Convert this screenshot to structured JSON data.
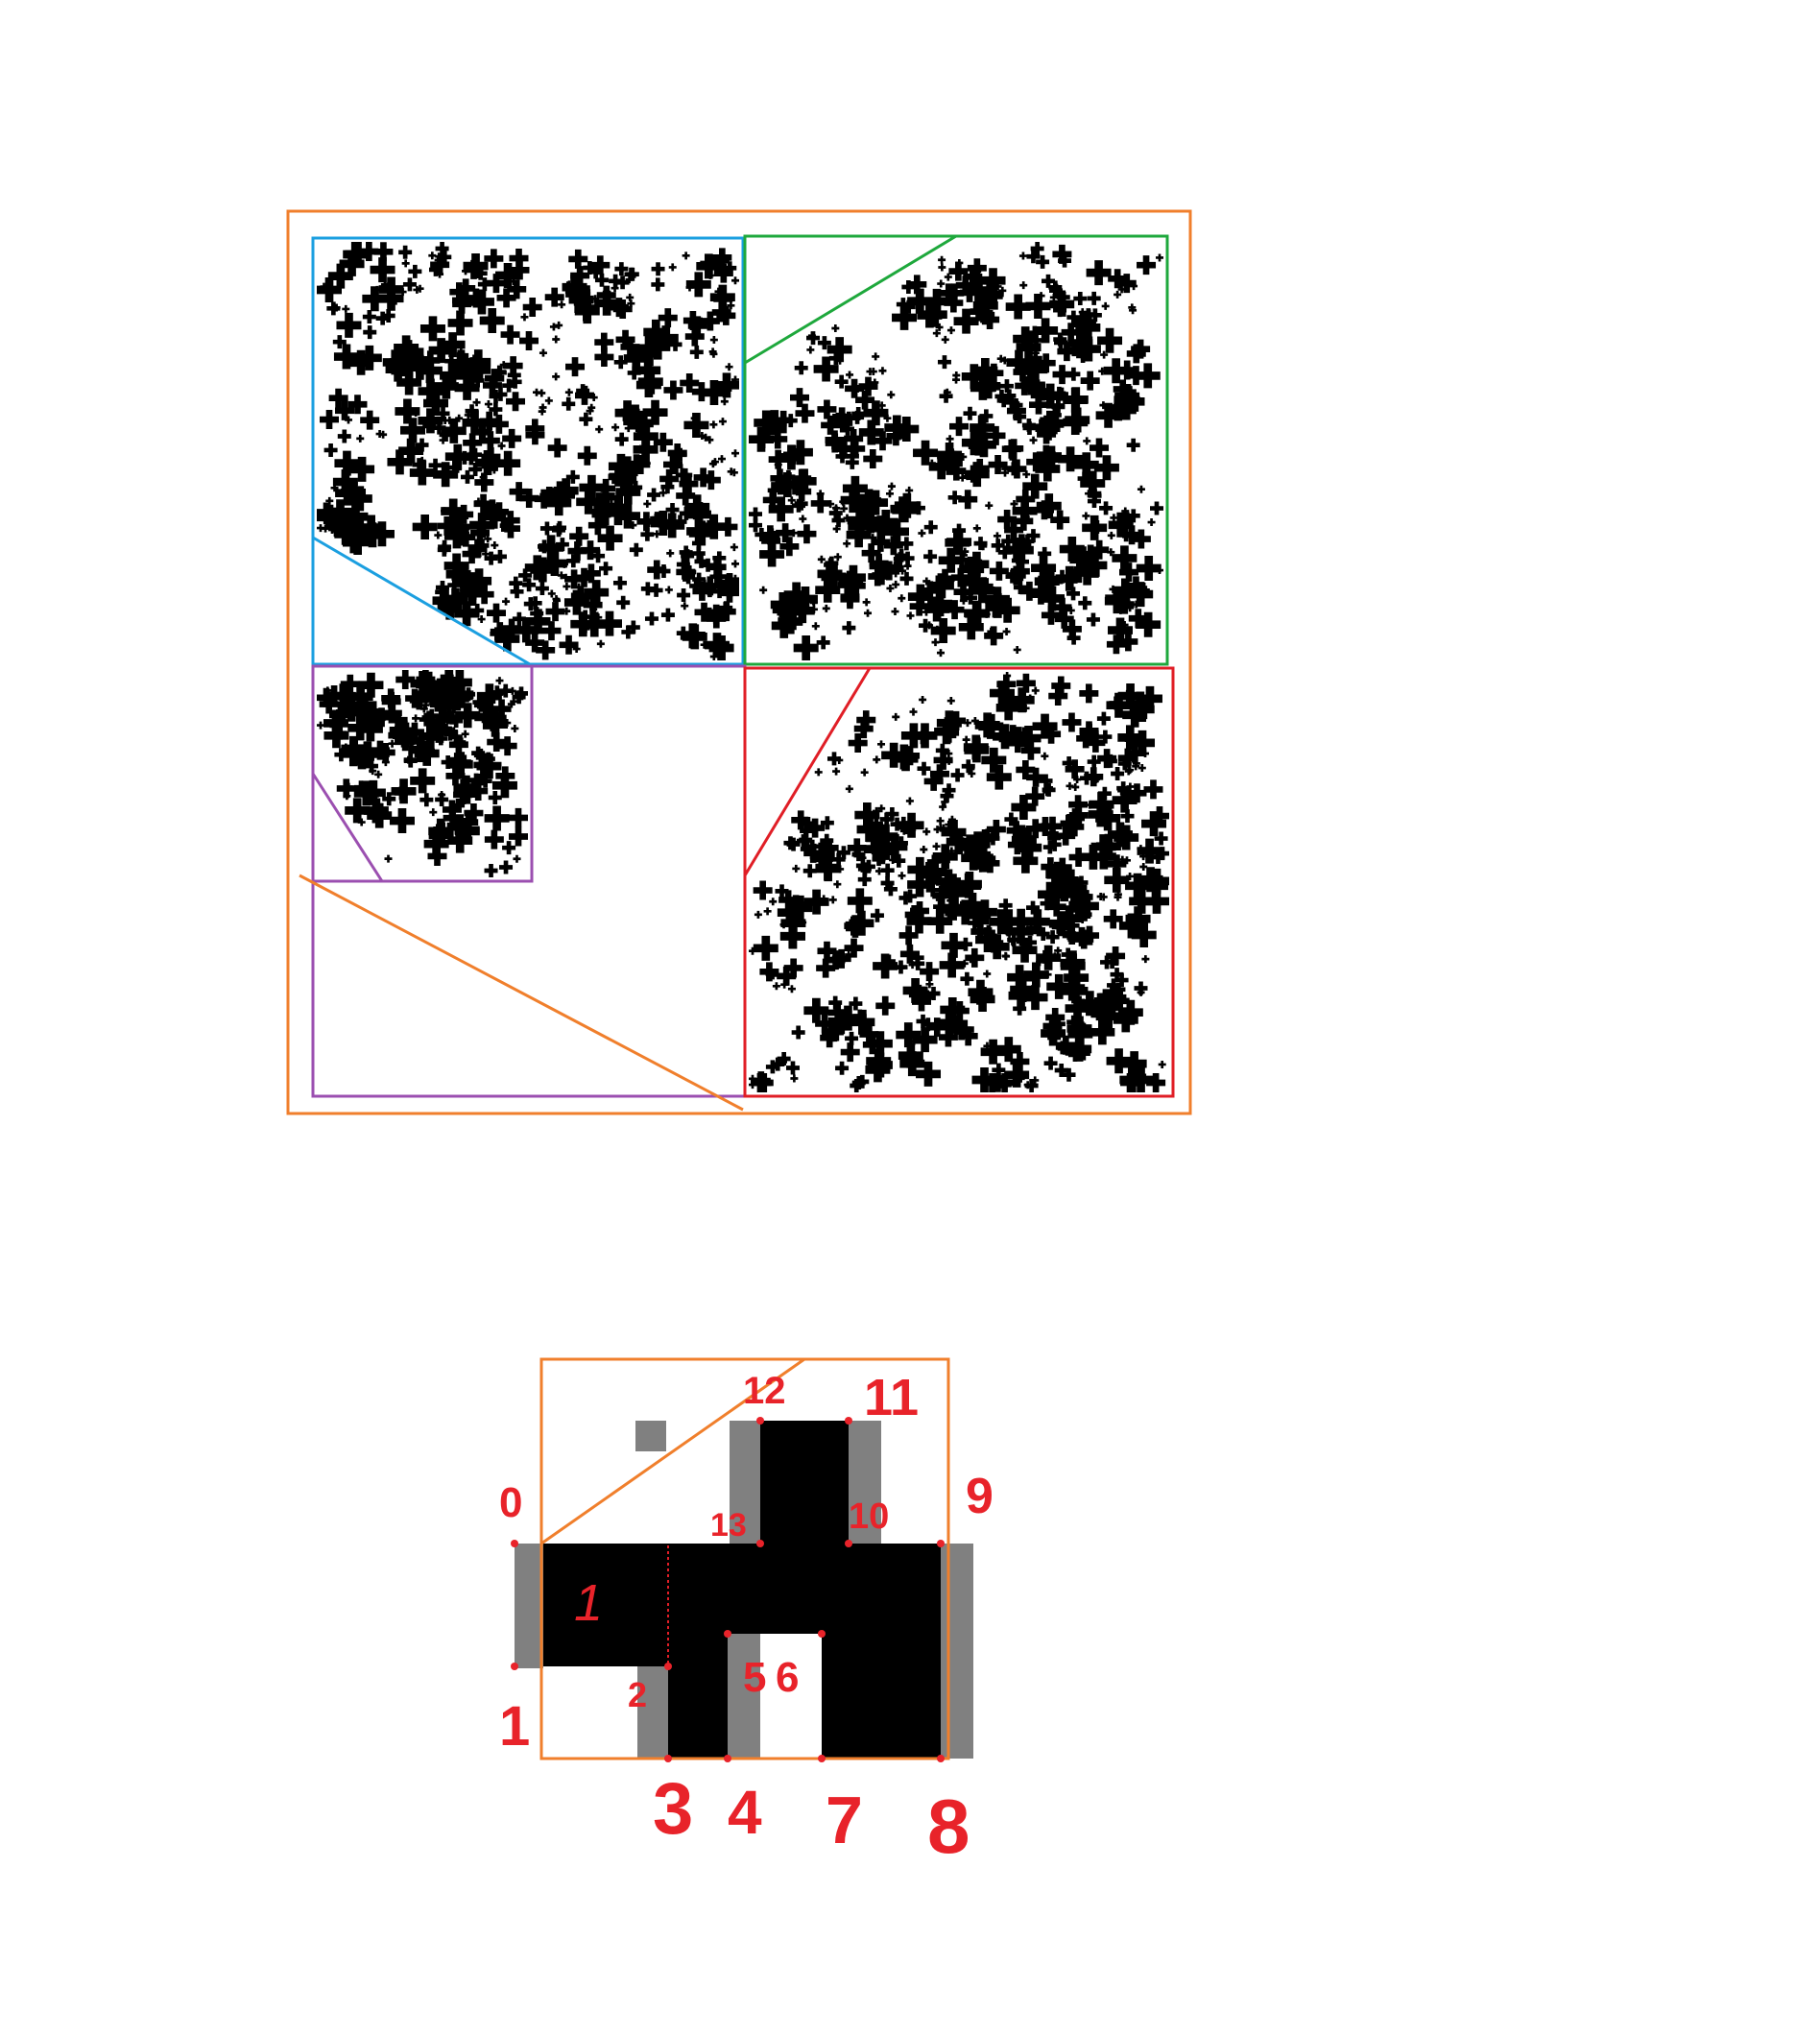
{
  "colors": {
    "orange": "#f07f2c",
    "blue": "#1b9fe0",
    "green": "#1ea83c",
    "purple": "#9b4fb0",
    "red": "#e01e26",
    "black": "#000000",
    "gray": "#808080",
    "label_red": "#e8232a"
  },
  "tile": {
    "region_label": "1",
    "point_labels": [
      "0",
      "1",
      "2",
      "3",
      "4",
      "5",
      "6",
      "7",
      "8",
      "9",
      "10",
      "11",
      "12",
      "13"
    ]
  }
}
